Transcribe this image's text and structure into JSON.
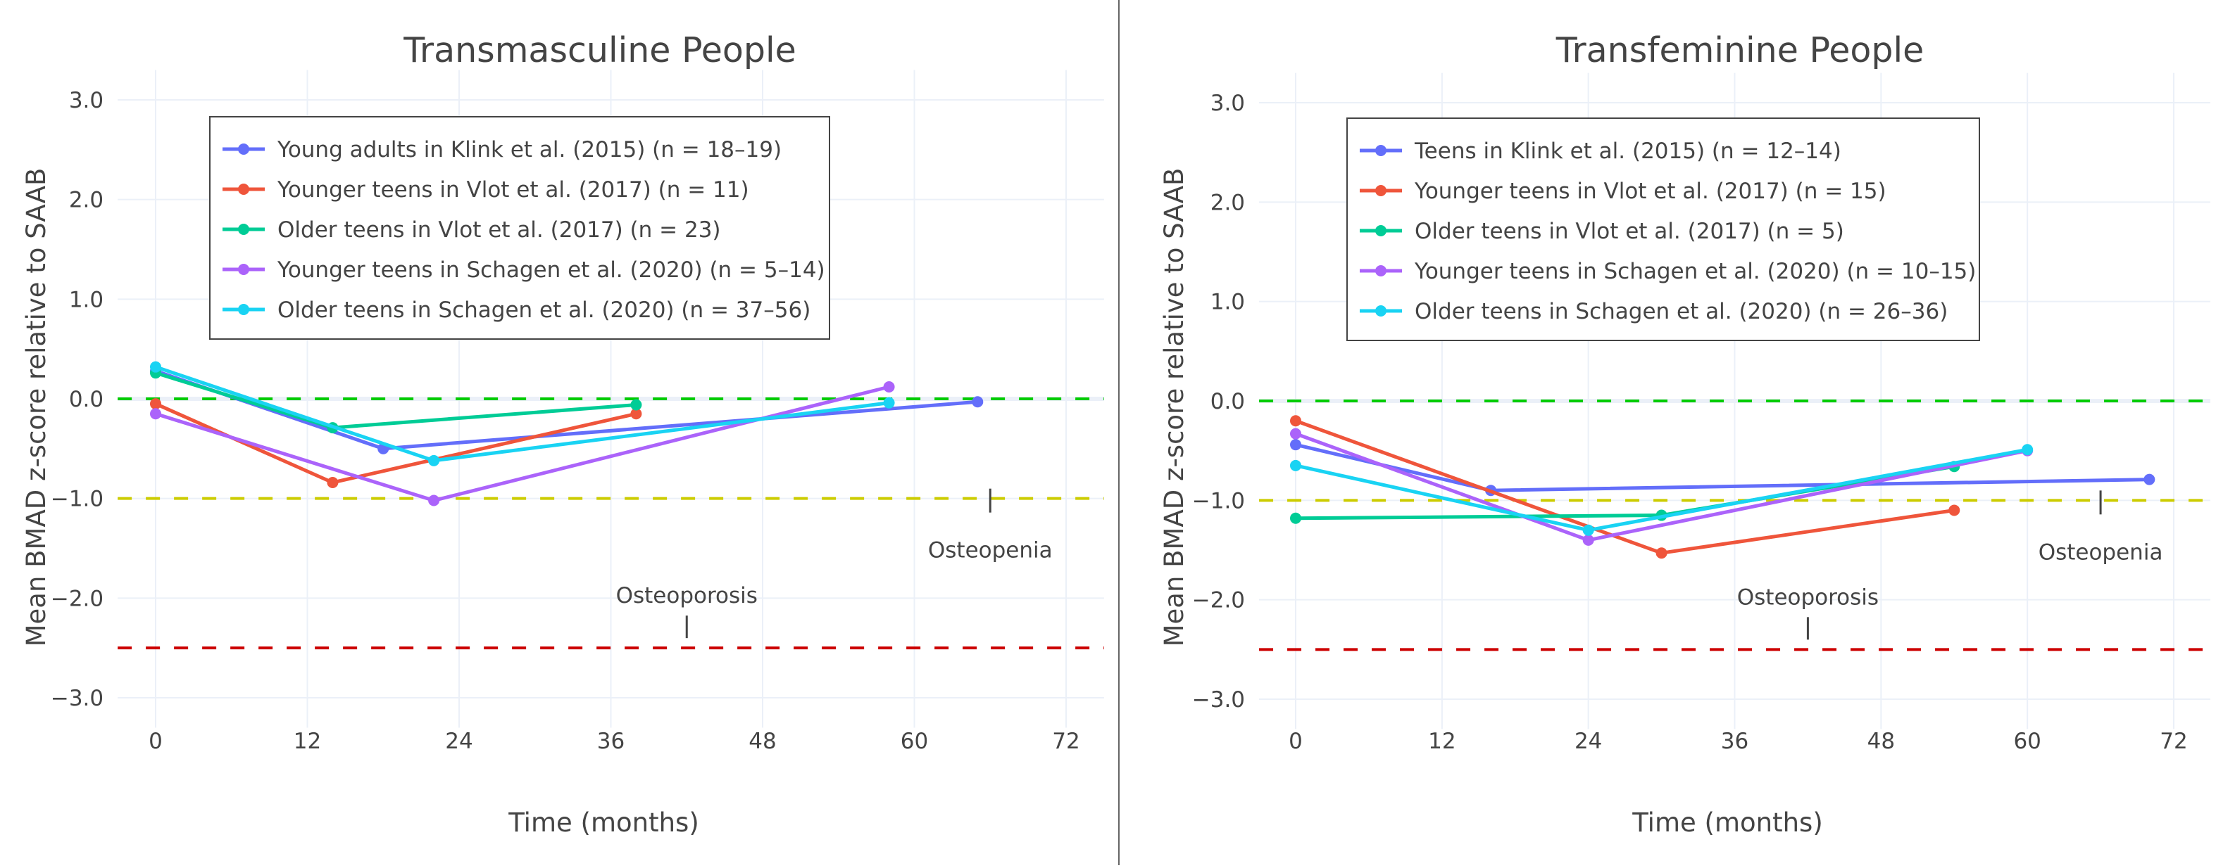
{
  "chart_data": [
    {
      "type": "line",
      "title": "Transmasculine People",
      "xlabel": "Time (months)",
      "ylabel": "Mean BMAD z-score relative to SAAB",
      "xlim": [
        -3,
        75
      ],
      "ylim": [
        -3.3,
        3.3
      ],
      "x_ticks": [
        "0",
        "12",
        "24",
        "36",
        "48",
        "60",
        "72"
      ],
      "y_ticks": [
        "3.0",
        "2.0",
        "1.0",
        "0.0",
        "−1.0",
        "−2.0",
        "−3.0"
      ],
      "grid": true,
      "legend_position": "top-left",
      "reference_lines": [
        {
          "y": 0,
          "color": "#00cc00"
        },
        {
          "y": -1,
          "color": "#cccc00"
        },
        {
          "y": -2.5,
          "color": "#cc0000"
        }
      ],
      "annotations": [
        {
          "text": "Osteopenia",
          "x": 66,
          "y": -1.0
        },
        {
          "text": "Osteoporosis",
          "x": 42,
          "y": -2.5
        }
      ],
      "series": [
        {
          "name": "Young adults in Klink et al. (2015) (n = 18–19)",
          "color": "#636efa",
          "x": [
            0,
            18,
            65
          ],
          "y": [
            0.28,
            -0.5,
            -0.03
          ]
        },
        {
          "name": "Younger teens in Vlot et al. (2017) (n = 11)",
          "color": "#ef553b",
          "x": [
            0,
            14,
            38
          ],
          "y": [
            -0.05,
            -0.84,
            -0.15
          ]
        },
        {
          "name": "Older teens in Vlot et al. (2017) (n = 23)",
          "color": "#00cc96",
          "x": [
            0,
            14,
            38
          ],
          "y": [
            0.26,
            -0.29,
            -0.06
          ]
        },
        {
          "name": "Younger teens in Schagen et al. (2020) (n = 5–14)",
          "color": "#ab63fa",
          "x": [
            0,
            22,
            58
          ],
          "y": [
            -0.15,
            -1.02,
            0.12
          ]
        },
        {
          "name": "Older teens in Schagen et al. (2020) (n = 37–56)",
          "color": "#19d3f3",
          "x": [
            0,
            22,
            58
          ],
          "y": [
            0.32,
            -0.62,
            -0.04
          ]
        }
      ]
    },
    {
      "type": "line",
      "title": "Transfeminine People",
      "xlabel": "Time (months)",
      "ylabel": "Mean BMAD z-score relative to SAAB",
      "xlim": [
        -3,
        75
      ],
      "ylim": [
        -3.3,
        3.3
      ],
      "x_ticks": [
        "0",
        "12",
        "24",
        "36",
        "48",
        "60",
        "72"
      ],
      "y_ticks": [
        "3.0",
        "2.0",
        "1.0",
        "0.0",
        "−1.0",
        "−2.0",
        "−3.0"
      ],
      "grid": true,
      "legend_position": "top-left",
      "reference_lines": [
        {
          "y": 0,
          "color": "#00cc00"
        },
        {
          "y": -1,
          "color": "#cccc00"
        },
        {
          "y": -2.5,
          "color": "#cc0000"
        }
      ],
      "annotations": [
        {
          "text": "Osteopenia",
          "x": 66,
          "y": -1.0
        },
        {
          "text": "Osteoporosis",
          "x": 42,
          "y": -2.5
        }
      ],
      "series": [
        {
          "name": "Teens in Klink et al. (2015) (n = 12–14)",
          "color": "#636efa",
          "x": [
            0,
            16,
            70
          ],
          "y": [
            -0.44,
            -0.9,
            -0.79
          ]
        },
        {
          "name": "Younger teens in Vlot et al. (2017) (n = 15)",
          "color": "#ef553b",
          "x": [
            0,
            30,
            54
          ],
          "y": [
            -0.2,
            -1.53,
            -1.1
          ]
        },
        {
          "name": "Older teens in Vlot et al. (2017) (n = 5)",
          "color": "#00cc96",
          "x": [
            0,
            30,
            54
          ],
          "y": [
            -1.18,
            -1.15,
            -0.66
          ]
        },
        {
          "name": "Younger teens in Schagen et al. (2020) (n = 10–15)",
          "color": "#ab63fa",
          "x": [
            0,
            24,
            60
          ],
          "y": [
            -0.33,
            -1.4,
            -0.5
          ]
        },
        {
          "name": "Older teens in Schagen et al. (2020) (n = 26–36)",
          "color": "#19d3f3",
          "x": [
            0,
            24,
            60
          ],
          "y": [
            -0.65,
            -1.3,
            -0.49
          ]
        }
      ]
    }
  ]
}
